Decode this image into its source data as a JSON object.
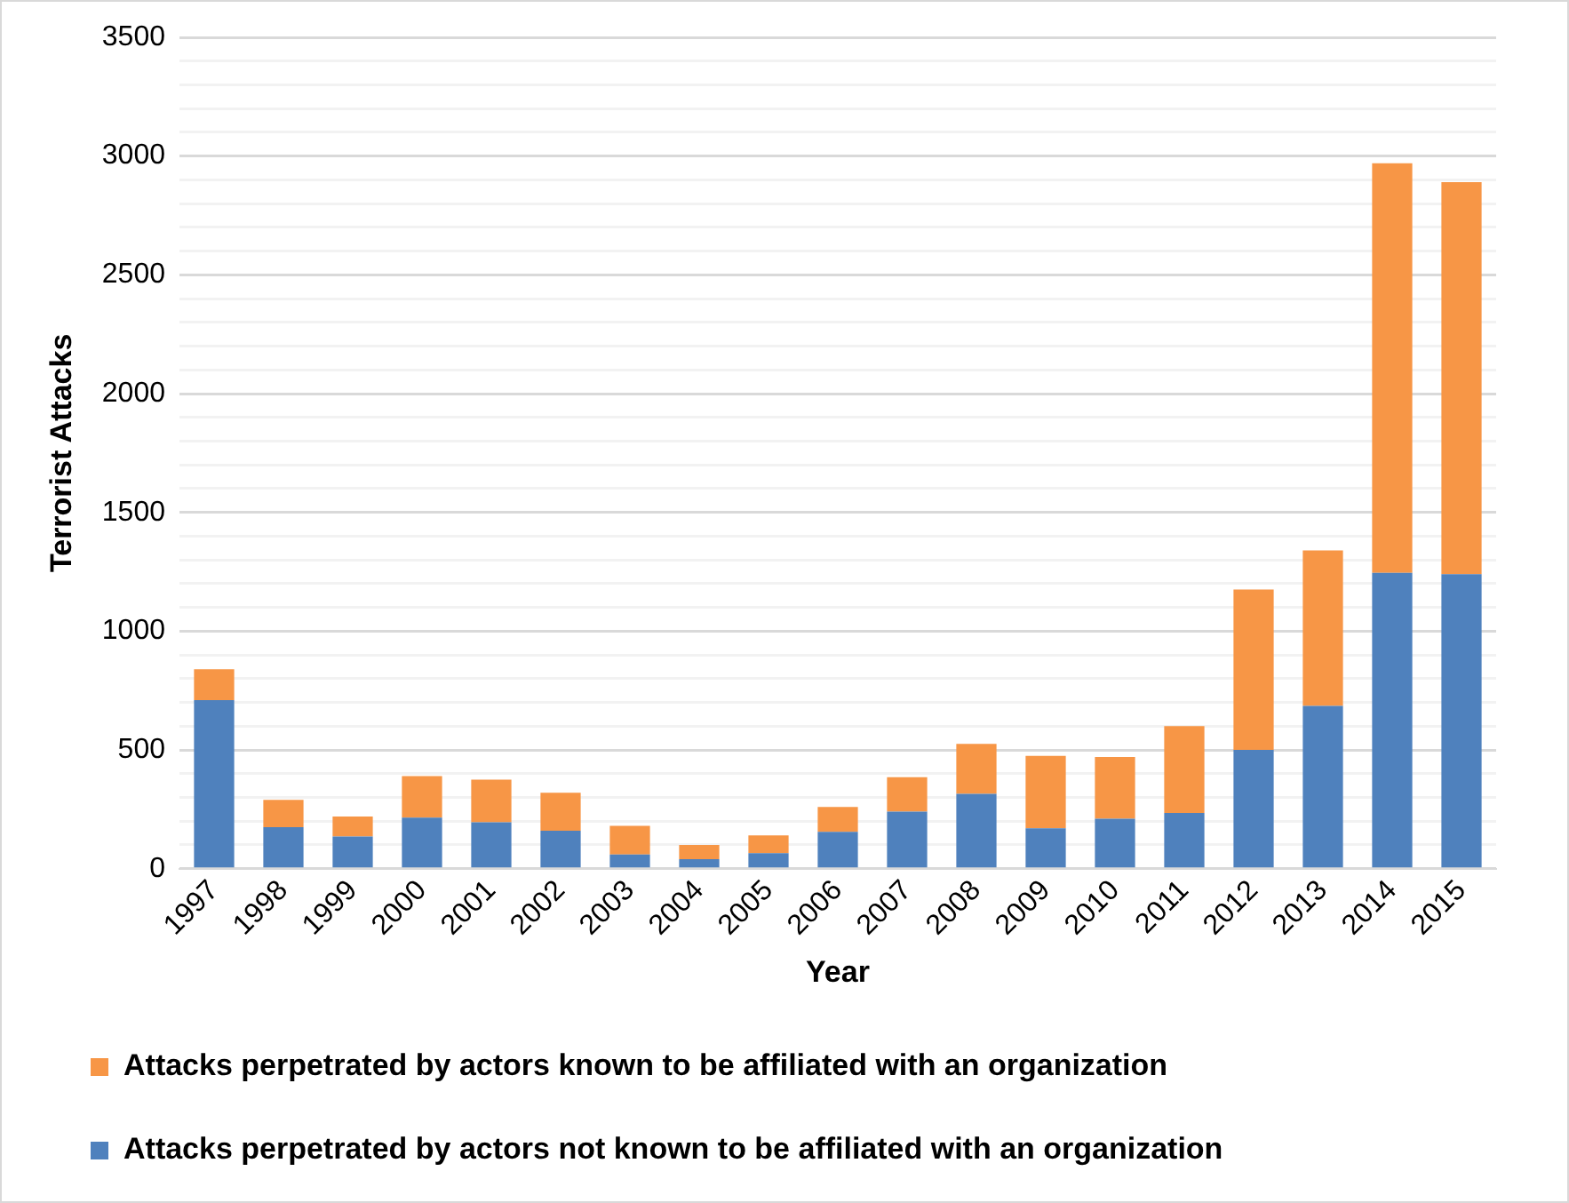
{
  "chart_data": {
    "type": "bar",
    "stacked": true,
    "xlabel": "Year",
    "ylabel": "Terrorist Attacks",
    "categories": [
      "1997",
      "1998",
      "1999",
      "2000",
      "2001",
      "2002",
      "2003",
      "2004",
      "2005",
      "2006",
      "2007",
      "2008",
      "2009",
      "2010",
      "2011",
      "2012",
      "2013",
      "2014",
      "2015"
    ],
    "series": [
      {
        "name": "Attacks perpetrated by actors not known to be affiliated with an organization",
        "color": "#4f81bd",
        "values": [
          710,
          175,
          135,
          215,
          195,
          160,
          60,
          40,
          65,
          155,
          240,
          315,
          170,
          210,
          235,
          500,
          685,
          1245,
          1240
        ]
      },
      {
        "name": "Attacks perpetrated by actors known to be affiliated with an organization",
        "color": "#f79646",
        "values": [
          130,
          115,
          85,
          175,
          180,
          160,
          120,
          60,
          75,
          105,
          145,
          210,
          305,
          260,
          365,
          675,
          655,
          1725,
          1650
        ]
      }
    ],
    "ylim": [
      0,
      3500
    ],
    "yticks": [
      0,
      {
        "value": 100,
        "label": null
      },
      {
        "value": 200,
        "label": null
      },
      {
        "value": 300,
        "label": null
      },
      {
        "value": 400,
        "label": null
      },
      500,
      {
        "value": 600,
        "label": null
      },
      {
        "value": 700,
        "label": null
      },
      {
        "value": 800,
        "label": null
      },
      {
        "value": 900,
        "label": null
      },
      1000,
      {
        "value": 1100,
        "label": null
      },
      {
        "value": 1200,
        "label": null
      },
      {
        "value": 1300,
        "label": null
      },
      {
        "value": 1400,
        "label": null
      },
      1500,
      {
        "value": 1600,
        "label": null
      },
      {
        "value": 1700,
        "label": null
      },
      {
        "value": 1800,
        "label": null
      },
      {
        "value": 1900,
        "label": null
      },
      2000,
      {
        "value": 2100,
        "label": null
      },
      {
        "value": 2200,
        "label": null
      },
      {
        "value": 2300,
        "label": null
      },
      {
        "value": 2400,
        "label": null
      },
      2500,
      {
        "value": 2600,
        "label": null
      },
      {
        "value": 2700,
        "label": null
      },
      {
        "value": 2800,
        "label": null
      },
      {
        "value": 2900,
        "label": null
      },
      3000,
      {
        "value": 3100,
        "label": null
      },
      {
        "value": 3200,
        "label": null
      },
      {
        "value": 3300,
        "label": null
      },
      {
        "value": 3400,
        "label": null
      },
      3500
    ],
    "grid": "y",
    "legend": "bottom"
  }
}
